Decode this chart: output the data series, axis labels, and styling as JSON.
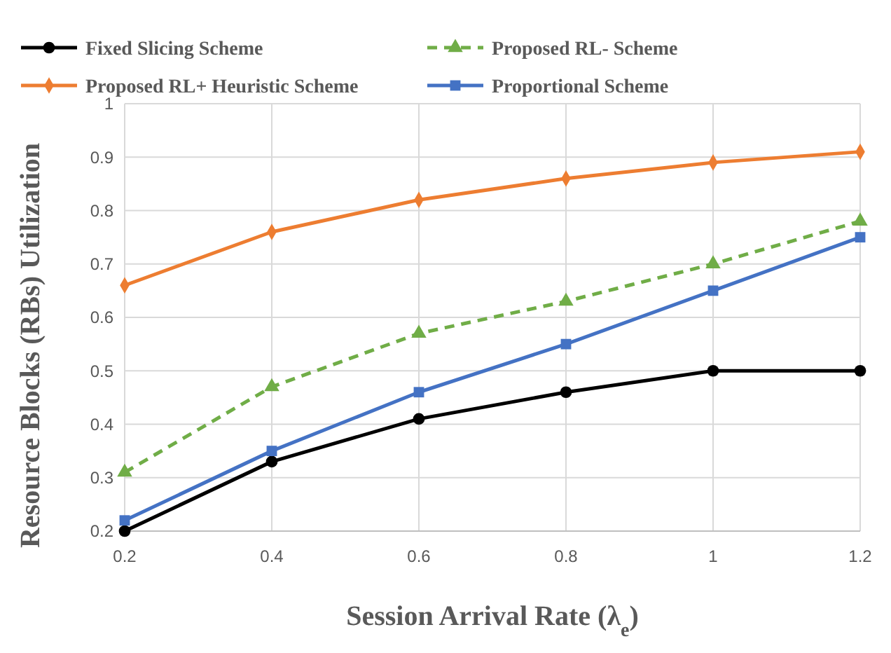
{
  "chart_data": {
    "type": "line",
    "xlabel": "Session Arrival Rate (λ$_{e}$)",
    "ylabel": "Resource Blocks (RBs) Utilization",
    "x": [
      0.2,
      0.4,
      0.6,
      0.8,
      1,
      1.2
    ],
    "xlim": [
      0.2,
      1.2
    ],
    "xticks": [
      0.2,
      0.4,
      0.6,
      0.8,
      1,
      1.2
    ],
    "ylim": [
      0.2,
      1
    ],
    "yticks": [
      0.2,
      0.3,
      0.4,
      0.5,
      0.6,
      0.7,
      0.8,
      0.9,
      1
    ],
    "grid": true,
    "legend": "top",
    "series": [
      {
        "name": "Fixed Slicing Scheme",
        "color": "#000000",
        "marker": "circle",
        "line_style": "solid",
        "values": [
          0.2,
          0.33,
          0.41,
          0.46,
          0.5,
          0.5
        ]
      },
      {
        "name": "Proposed RL- Scheme",
        "color": "#70ad47",
        "marker": "triangle",
        "line_style": "dashed",
        "values": [
          0.31,
          0.47,
          0.57,
          0.63,
          0.7,
          0.78
        ]
      },
      {
        "name": "Proposed RL+ Heuristic Scheme",
        "color": "#ed7d31",
        "marker": "diamond",
        "line_style": "solid",
        "values": [
          0.66,
          0.76,
          0.82,
          0.86,
          0.89,
          0.91
        ]
      },
      {
        "name": "Proportional Scheme",
        "color": "#4472c4",
        "marker": "square",
        "line_style": "solid",
        "values": [
          0.22,
          0.35,
          0.46,
          0.55,
          0.65,
          0.75
        ]
      }
    ]
  }
}
